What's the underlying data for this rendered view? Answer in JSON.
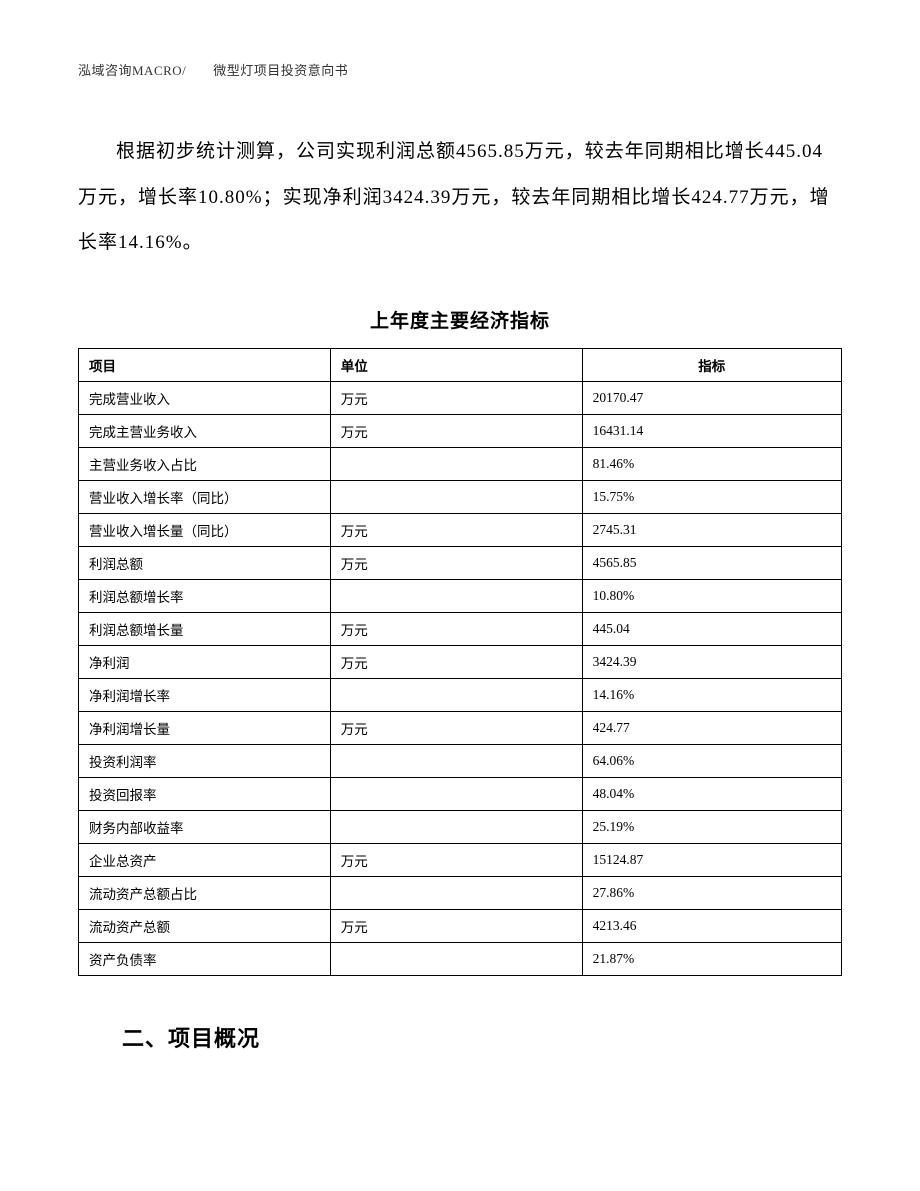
{
  "header": {
    "text": "泓域咨询MACRO/　　微型灯项目投资意向书"
  },
  "paragraph": {
    "text": "根据初步统计测算，公司实现利润总额4565.85万元，较去年同期相比增长445.04万元，增长率10.80%；实现净利润3424.39万元，较去年同期相比增长424.77万元，增长率14.16%。"
  },
  "table": {
    "title": "上年度主要经济指标",
    "columns": [
      "项目",
      "单位",
      "指标"
    ],
    "rows": [
      [
        "完成营业收入",
        "万元",
        "20170.47"
      ],
      [
        "完成主营业务收入",
        "万元",
        "16431.14"
      ],
      [
        "主营业务收入占比",
        "",
        "81.46%"
      ],
      [
        "营业收入增长率（同比）",
        "",
        "15.75%"
      ],
      [
        "营业收入增长量（同比）",
        "万元",
        "2745.31"
      ],
      [
        "利润总额",
        "万元",
        "4565.85"
      ],
      [
        "利润总额增长率",
        "",
        "10.80%"
      ],
      [
        "利润总额增长量",
        "万元",
        "445.04"
      ],
      [
        "净利润",
        "万元",
        "3424.39"
      ],
      [
        "净利润增长率",
        "",
        "14.16%"
      ],
      [
        "净利润增长量",
        "万元",
        "424.77"
      ],
      [
        "投资利润率",
        "",
        "64.06%"
      ],
      [
        "投资回报率",
        "",
        "48.04%"
      ],
      [
        "财务内部收益率",
        "",
        "25.19%"
      ],
      [
        "企业总资产",
        "万元",
        "15124.87"
      ],
      [
        "流动资产总额占比",
        "",
        "27.86%"
      ],
      [
        "流动资产总额",
        "万元",
        "4213.46"
      ],
      [
        "资产负债率",
        "",
        "21.87%"
      ]
    ]
  },
  "section": {
    "heading": "二、项目概况"
  },
  "styles": {
    "background_color": "#ffffff",
    "text_color": "#000000",
    "header_color": "#333333",
    "border_color": "#000000",
    "body_fontsize": 19,
    "table_fontsize": 13.5,
    "title_fontsize": 19,
    "heading_fontsize": 22,
    "header_fontsize": 13
  }
}
